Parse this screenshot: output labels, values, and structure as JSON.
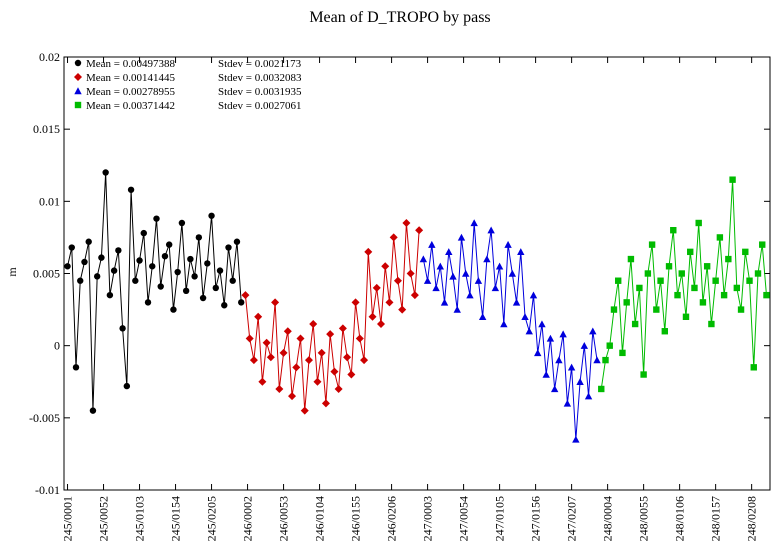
{
  "chart_data": {
    "type": "line",
    "title": "Mean of D_TROPO by pass",
    "y_label": "m",
    "xlim": [
      -5,
      995
    ],
    "ylim": [
      -0.01,
      0.02
    ],
    "xticks": [
      {
        "value": 0,
        "label": "245/0001"
      },
      {
        "value": 51,
        "label": "245/0052"
      },
      {
        "value": 102,
        "label": "245/0103"
      },
      {
        "value": 153,
        "label": "245/0154"
      },
      {
        "value": 204,
        "label": "245/0205"
      },
      {
        "value": 255,
        "label": "246/0002"
      },
      {
        "value": 306,
        "label": "246/0053"
      },
      {
        "value": 357,
        "label": "246/0104"
      },
      {
        "value": 408,
        "label": "246/0155"
      },
      {
        "value": 459,
        "label": "246/0206"
      },
      {
        "value": 510,
        "label": "247/0003"
      },
      {
        "value": 561,
        "label": "247/0054"
      },
      {
        "value": 612,
        "label": "247/0105"
      },
      {
        "value": 663,
        "label": "247/0156"
      },
      {
        "value": 714,
        "label": "247/0207"
      },
      {
        "value": 765,
        "label": "248/0004"
      },
      {
        "value": 816,
        "label": "248/0055"
      },
      {
        "value": 867,
        "label": "248/0106"
      },
      {
        "value": 918,
        "label": "248/0157"
      },
      {
        "value": 969,
        "label": "248/0208"
      }
    ],
    "yticks": [
      -0.01,
      -0.005,
      0,
      0.005,
      0.01,
      0.015,
      0.02
    ],
    "grid": false,
    "legend": "upper-left",
    "series": [
      {
        "name": "Mean = 0.00497388",
        "stdev_label": "Stdev = 0.0021173",
        "color": "#000000",
        "marker": "circle",
        "x": [
          0,
          6,
          12,
          18,
          24,
          30,
          36,
          42,
          48,
          54,
          60,
          66,
          72,
          78,
          84,
          90,
          96,
          102,
          108,
          114,
          120,
          126,
          132,
          138,
          144,
          150,
          156,
          162,
          168,
          174,
          180,
          186,
          192,
          198,
          204,
          210,
          216,
          222,
          228,
          234,
          240,
          246
        ],
        "values": [
          0.0055,
          0.0068,
          -0.0015,
          0.0045,
          0.0058,
          0.0072,
          -0.0045,
          0.0048,
          0.0061,
          0.012,
          0.0035,
          0.0052,
          0.0066,
          0.0012,
          -0.0028,
          0.0108,
          0.0045,
          0.0059,
          0.0078,
          0.003,
          0.0055,
          0.0088,
          0.0041,
          0.0062,
          0.007,
          0.0025,
          0.0051,
          0.0085,
          0.0038,
          0.006,
          0.0048,
          0.0075,
          0.0033,
          0.0057,
          0.009,
          0.004,
          0.0052,
          0.0028,
          0.0068,
          0.0045,
          0.0072,
          0.003
        ]
      },
      {
        "name": "Mean = 0.00141445",
        "stdev_label": "Stdev = 0.0032083",
        "color": "#cc0000",
        "marker": "diamond",
        "x": [
          252,
          258,
          264,
          270,
          276,
          282,
          288,
          294,
          300,
          306,
          312,
          318,
          324,
          330,
          336,
          342,
          348,
          354,
          360,
          366,
          372,
          378,
          384,
          390,
          396,
          402,
          408,
          414,
          420,
          426,
          432,
          438,
          444,
          450,
          456,
          462,
          468,
          474,
          480,
          486,
          492,
          498
        ],
        "values": [
          0.0035,
          0.0005,
          -0.001,
          0.002,
          -0.0025,
          0.0002,
          -0.0008,
          0.003,
          -0.003,
          -0.0005,
          0.001,
          -0.0035,
          -0.0015,
          0.0005,
          -0.0045,
          -0.001,
          0.0015,
          -0.0025,
          -0.0005,
          -0.004,
          0.0008,
          -0.0018,
          -0.003,
          0.0012,
          -0.0008,
          -0.002,
          0.003,
          0.0005,
          -0.001,
          0.0065,
          0.002,
          0.004,
          0.0015,
          0.0055,
          0.003,
          0.0075,
          0.0045,
          0.0025,
          0.0085,
          0.005,
          0.0035,
          0.008
        ]
      },
      {
        "name": "Mean = 0.00278955",
        "stdev_label": "Stdev = 0.0031935",
        "color": "#0000dd",
        "marker": "triangle",
        "x": [
          504,
          510,
          516,
          522,
          528,
          534,
          540,
          546,
          552,
          558,
          564,
          570,
          576,
          582,
          588,
          594,
          600,
          606,
          612,
          618,
          624,
          630,
          636,
          642,
          648,
          654,
          660,
          666,
          672,
          678,
          684,
          690,
          696,
          702,
          708,
          714,
          720,
          726,
          732,
          738,
          744,
          750
        ],
        "values": [
          0.006,
          0.0045,
          0.007,
          0.004,
          0.0055,
          0.003,
          0.0065,
          0.0048,
          0.0025,
          0.0075,
          0.005,
          0.0035,
          0.0085,
          0.0045,
          0.002,
          0.006,
          0.008,
          0.004,
          0.0055,
          0.0015,
          0.007,
          0.005,
          0.003,
          0.0065,
          0.002,
          0.001,
          0.0035,
          -0.0005,
          0.0015,
          -0.002,
          0.0005,
          -0.003,
          -0.001,
          0.0008,
          -0.004,
          -0.0015,
          -0.0065,
          -0.0025,
          0.0,
          -0.0035,
          0.001,
          -0.001
        ]
      },
      {
        "name": "Mean = 0.00371442",
        "stdev_label": "Stdev = 0.0027061",
        "color": "#00bb00",
        "marker": "square",
        "x": [
          756,
          762,
          768,
          774,
          780,
          786,
          792,
          798,
          804,
          810,
          816,
          822,
          828,
          834,
          840,
          846,
          852,
          858,
          864,
          870,
          876,
          882,
          888,
          894,
          900,
          906,
          912,
          918,
          924,
          930,
          936,
          942,
          948,
          954,
          960,
          966,
          972,
          978,
          984,
          990
        ],
        "values": [
          -0.003,
          -0.001,
          0.0,
          0.0025,
          0.0045,
          -0.0005,
          0.003,
          0.006,
          0.0015,
          0.004,
          -0.002,
          0.005,
          0.007,
          0.0025,
          0.0045,
          0.001,
          0.0055,
          0.008,
          0.0035,
          0.005,
          0.002,
          0.0065,
          0.004,
          0.0085,
          0.003,
          0.0055,
          0.0015,
          0.0045,
          0.0075,
          0.0035,
          0.006,
          0.0115,
          0.004,
          0.0025,
          0.0065,
          0.0045,
          -0.0015,
          0.005,
          0.007,
          0.0035
        ]
      }
    ]
  }
}
